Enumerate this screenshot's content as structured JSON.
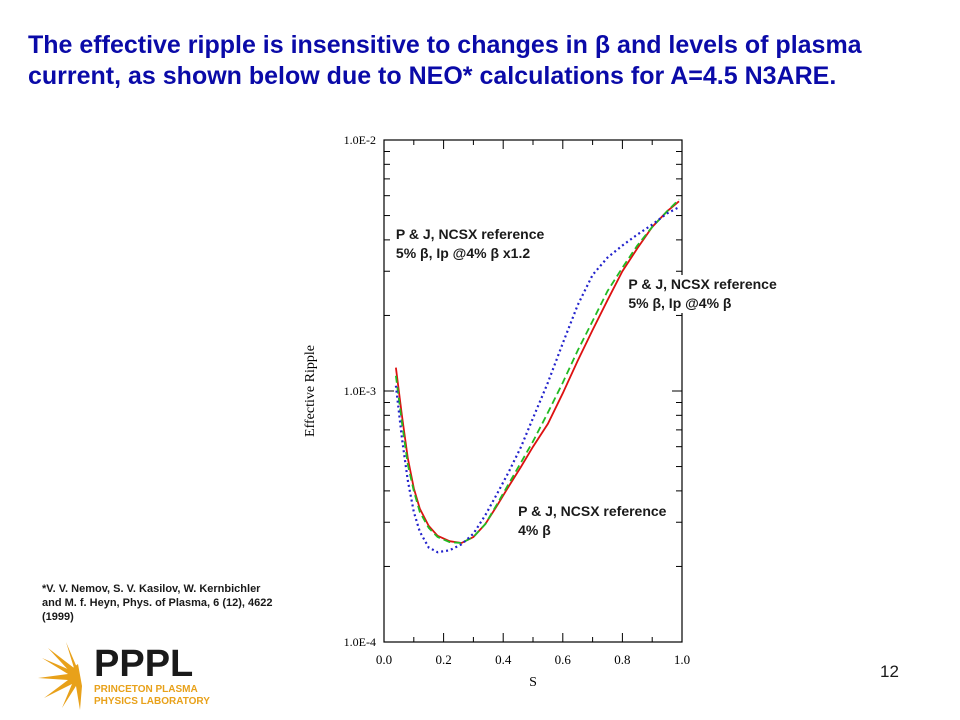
{
  "slide": {
    "title": "The effective ripple is insensitive to changes in β and levels of plasma current, as shown below due to NEO* calculations for A=4.5 N3ARE.",
    "reference": "*V. V. Nemov, S. V. Kasilov, W. Kernbichler and M. f. Heyn, Phys. of Plasma, 6 (12), 4622 (1999)",
    "page_number": "12",
    "logo": {
      "text": "PPPL",
      "subtitle_line1": "PRINCETON PLASMA",
      "subtitle_line2": "PHYSICS LABORATORY",
      "color": "#1a1a1a",
      "accent": "#e8a11a"
    }
  },
  "chart_data": {
    "type": "line",
    "title": "",
    "xlabel": "S",
    "ylabel": "Effective Ripple",
    "xlim": [
      0.0,
      1.0
    ],
    "ylim": [
      0.0001,
      0.01
    ],
    "yscale": "log",
    "x_ticks": [
      "0.0",
      "0.2",
      "0.4",
      "0.6",
      "0.8",
      "1.0"
    ],
    "y_ticks": [
      "1.0E-4",
      "1.0E-3",
      "1.0E-2"
    ],
    "series": [
      {
        "name": "P & J, NCSX reference 4% β",
        "color": "#dd1111",
        "style": "solid",
        "points": [
          [
            0.04,
            0.00124
          ],
          [
            0.06,
            0.0008
          ],
          [
            0.08,
            0.00054
          ],
          [
            0.1,
            0.00041
          ],
          [
            0.12,
            0.00034
          ],
          [
            0.15,
            0.00029
          ],
          [
            0.18,
            0.000265
          ],
          [
            0.22,
            0.000252
          ],
          [
            0.26,
            0.000248
          ],
          [
            0.3,
            0.000262
          ],
          [
            0.34,
            0.000295
          ],
          [
            0.38,
            0.00035
          ],
          [
            0.42,
            0.00042
          ],
          [
            0.46,
            0.0005
          ],
          [
            0.5,
            0.0006
          ],
          [
            0.55,
            0.00074
          ],
          [
            0.6,
            0.00098
          ],
          [
            0.65,
            0.00132
          ],
          [
            0.7,
            0.00175
          ],
          [
            0.75,
            0.0023
          ],
          [
            0.8,
            0.003
          ],
          [
            0.85,
            0.0037
          ],
          [
            0.9,
            0.0045
          ],
          [
            0.95,
            0.0052
          ],
          [
            0.99,
            0.0057
          ]
        ]
      },
      {
        "name": "P & J, NCSX reference 5% β, Ip @4% β",
        "color": "#22bb22",
        "style": "dashed",
        "points": [
          [
            0.04,
            0.00115
          ],
          [
            0.06,
            0.00075
          ],
          [
            0.08,
            0.00051
          ],
          [
            0.1,
            0.0004
          ],
          [
            0.12,
            0.00033
          ],
          [
            0.15,
            0.000285
          ],
          [
            0.18,
            0.000262
          ],
          [
            0.22,
            0.00025
          ],
          [
            0.26,
            0.000248
          ],
          [
            0.3,
            0.000262
          ],
          [
            0.34,
            0.000295
          ],
          [
            0.38,
            0.000355
          ],
          [
            0.42,
            0.00043
          ],
          [
            0.46,
            0.00052
          ],
          [
            0.5,
            0.00063
          ],
          [
            0.55,
            0.00082
          ],
          [
            0.6,
            0.00108
          ],
          [
            0.65,
            0.00145
          ],
          [
            0.7,
            0.0019
          ],
          [
            0.75,
            0.0025
          ],
          [
            0.8,
            0.0031
          ],
          [
            0.85,
            0.0038
          ],
          [
            0.9,
            0.0045
          ],
          [
            0.95,
            0.0052
          ],
          [
            0.99,
            0.0058
          ]
        ]
      },
      {
        "name": "P & J, NCSX reference 5% β, Ip @4% β x1.2",
        "color": "#2222cc",
        "style": "dotted",
        "points": [
          [
            0.04,
            0.00105
          ],
          [
            0.06,
            0.00065
          ],
          [
            0.08,
            0.00044
          ],
          [
            0.1,
            0.00033
          ],
          [
            0.12,
            0.000275
          ],
          [
            0.15,
            0.000238
          ],
          [
            0.18,
            0.000228
          ],
          [
            0.22,
            0.000232
          ],
          [
            0.26,
            0.000245
          ],
          [
            0.3,
            0.00027
          ],
          [
            0.34,
            0.00032
          ],
          [
            0.38,
            0.00039
          ],
          [
            0.42,
            0.00048
          ],
          [
            0.46,
            0.0006
          ],
          [
            0.5,
            0.00078
          ],
          [
            0.55,
            0.00108
          ],
          [
            0.6,
            0.00155
          ],
          [
            0.65,
            0.0022
          ],
          [
            0.7,
            0.0029
          ],
          [
            0.75,
            0.0034
          ],
          [
            0.8,
            0.0038
          ],
          [
            0.85,
            0.0042
          ],
          [
            0.9,
            0.0046
          ],
          [
            0.95,
            0.0051
          ],
          [
            0.99,
            0.0054
          ]
        ]
      }
    ],
    "annotations": [
      {
        "line1": "P & J, NCSX reference",
        "line2": "5% β, Ip @4% β x1.2",
        "x": 0.04,
        "y": 0.0046
      },
      {
        "line1": "P & J, NCSX reference",
        "line2": "5% β, Ip @4% β",
        "x": 0.82,
        "y": 0.0029
      },
      {
        "line1": "P & J, NCSX reference",
        "line2": "4% β",
        "x": 0.45,
        "y": 0.00036
      }
    ]
  }
}
